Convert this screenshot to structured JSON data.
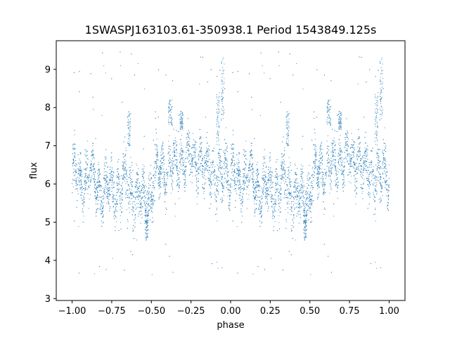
{
  "chart_data": {
    "type": "scatter",
    "title": "1SWASPJ163103.61-350938.1 Period 1543849.125s",
    "xlabel": "phase",
    "ylabel": "flux",
    "xlim": [
      -1.1,
      1.1
    ],
    "ylim": [
      2.95,
      9.75
    ],
    "xticks": [
      -1.0,
      -0.75,
      -0.5,
      -0.25,
      0.0,
      0.25,
      0.5,
      0.75,
      1.0
    ],
    "xtick_labels": [
      "−1.00",
      "−0.75",
      "−0.50",
      "−0.25",
      "0.00",
      "0.25",
      "0.50",
      "0.75",
      "1.00"
    ],
    "yticks": [
      3,
      4,
      5,
      6,
      7,
      8,
      9
    ],
    "ytick_labels": [
      "3",
      "4",
      "5",
      "6",
      "7",
      "8",
      "9"
    ],
    "grid": false,
    "series": [
      {
        "color": "#1f77b4",
        "marker": "point",
        "profile": [
          {
            "x": 0.0,
            "center": 6.3,
            "spread": 0.55
          },
          {
            "x": 0.05,
            "center": 6.0,
            "spread": 0.55
          },
          {
            "x": 0.1,
            "center": 6.3,
            "spread": 0.5
          },
          {
            "x": 0.15,
            "center": 6.0,
            "spread": 0.5
          },
          {
            "x": 0.2,
            "center": 5.9,
            "spread": 0.55
          },
          {
            "x": 0.25,
            "center": 5.8,
            "spread": 0.5
          },
          {
            "x": 0.3,
            "center": 6.0,
            "spread": 0.6
          },
          {
            "x": 0.35,
            "center": 5.9,
            "spread": 0.6
          },
          {
            "x": 0.4,
            "center": 5.8,
            "spread": 0.6
          },
          {
            "x": 0.45,
            "center": 5.5,
            "spread": 0.6
          },
          {
            "x": 0.5,
            "center": 5.8,
            "spread": 0.6
          },
          {
            "x": 0.55,
            "center": 6.3,
            "spread": 0.5
          },
          {
            "x": 0.6,
            "center": 6.5,
            "spread": 0.45
          },
          {
            "x": 0.65,
            "center": 6.4,
            "spread": 0.5
          },
          {
            "x": 0.7,
            "center": 6.7,
            "spread": 0.5
          },
          {
            "x": 0.75,
            "center": 6.5,
            "spread": 0.5
          },
          {
            "x": 0.8,
            "center": 6.8,
            "spread": 0.5
          },
          {
            "x": 0.85,
            "center": 6.2,
            "spread": 0.5
          },
          {
            "x": 0.9,
            "center": 6.4,
            "spread": 0.6
          },
          {
            "x": 0.95,
            "center": 6.1,
            "spread": 0.55
          },
          {
            "x": 1.0,
            "center": 6.3,
            "spread": 0.55
          }
        ],
        "features": [
          {
            "x": 0.62,
            "width": 0.025,
            "ymin": 7.5,
            "ymax": 8.2
          },
          {
            "x": 0.69,
            "width": 0.02,
            "ymin": 7.4,
            "ymax": 7.9
          },
          {
            "x": 0.36,
            "width": 0.02,
            "ymin": 7.0,
            "ymax": 7.9
          },
          {
            "x": 0.92,
            "width": 0.02,
            "ymin": 7.0,
            "ymax": 8.4
          },
          {
            "x": 0.95,
            "width": 0.02,
            "ymin": 7.6,
            "ymax": 9.3
          },
          {
            "x": 0.47,
            "width": 0.02,
            "ymin": 4.5,
            "ymax": 5.2
          }
        ]
      }
    ]
  }
}
